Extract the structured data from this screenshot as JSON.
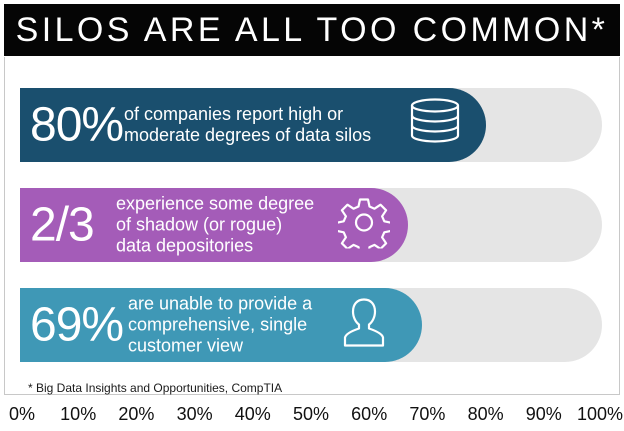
{
  "title": "SILOS ARE ALL TOO COMMON*",
  "footnote": "* Big Data Insights and Opportunities, CompTIA",
  "colors": {
    "title_bg": "#050505",
    "track": "#e5e5e5",
    "row1": "#1a4f6e",
    "row2": "#a45cb8",
    "row3": "#3f98b6"
  },
  "rows": [
    {
      "stat": "80%",
      "lines": [
        "of companies report high or",
        "moderate degrees of data silos"
      ],
      "icon": "database-icon",
      "color": "#1a4f6e"
    },
    {
      "stat": "2/3",
      "lines": [
        "experience some degree",
        "of shadow (or rogue)",
        "data depositories"
      ],
      "icon": "gear-icon",
      "color": "#a45cb8"
    },
    {
      "stat": "69%",
      "lines": [
        "are unable to provide a",
        "comprehensive, single",
        "customer view"
      ],
      "icon": "person-icon",
      "color": "#3f98b6"
    }
  ],
  "chart_data": {
    "type": "bar",
    "orientation": "horizontal",
    "title": "SILOS ARE ALL TOO COMMON*",
    "categories": [
      "of companies report high or moderate degrees of data silos",
      "experience some degree of shadow (or rogue) data depositories",
      "are unable to provide a comprehensive, single customer view"
    ],
    "values": [
      80,
      66.7,
      69
    ],
    "value_labels": [
      "80%",
      "2/3",
      "69%"
    ],
    "xlim": [
      0,
      100
    ],
    "x_ticks": [
      "0%",
      "10%",
      "20%",
      "30%",
      "40%",
      "50%",
      "60%",
      "70%",
      "80%",
      "90%",
      "100%"
    ],
    "grid": false
  }
}
